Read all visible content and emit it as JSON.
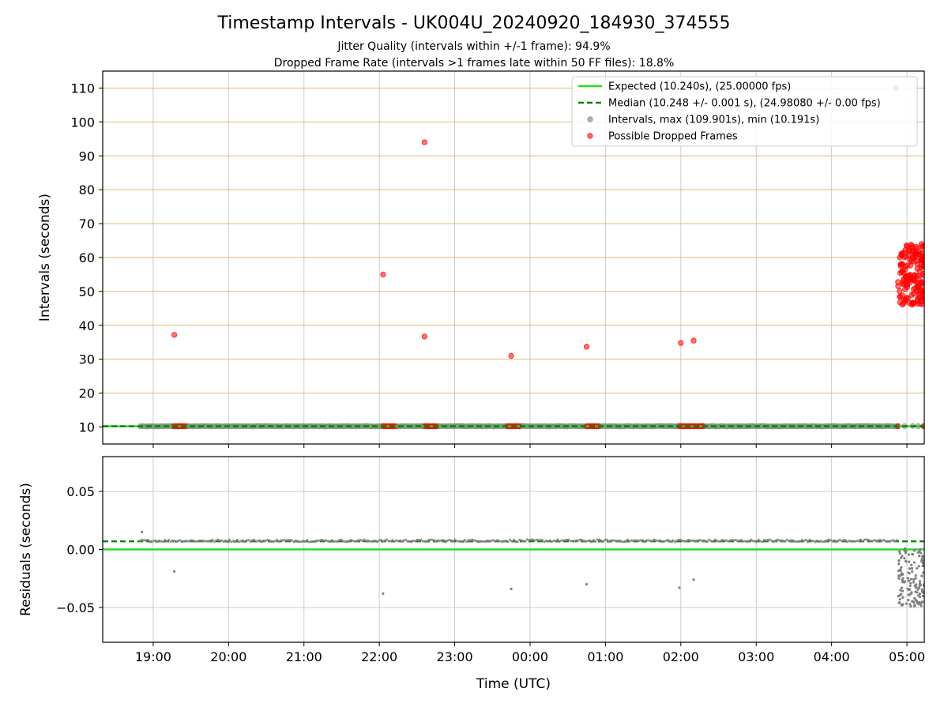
{
  "title": "Timestamp Intervals - UK004U_20240920_184930_374555",
  "subtitle_1": "Jitter Quality (intervals within +/-1 frame): 94.9%",
  "subtitle_2": "Dropped Frame Rate (intervals >1 frames late within 50 FF files): 18.8%",
  "colors": {
    "expected": "#22dd22",
    "median": "#008000",
    "intervals": "#808080",
    "dropped": "#ff0000",
    "grid_top": "#ddbb77",
    "grid": "#cccccc"
  },
  "chart_data": [
    {
      "type": "scatter",
      "ylabel": "Intervals (seconds)",
      "xlim": [
        18.33,
        29.23
      ],
      "ylim": [
        5,
        115
      ],
      "yticks": [
        10,
        20,
        30,
        40,
        50,
        60,
        70,
        80,
        90,
        100,
        110
      ],
      "grid": true,
      "legend_position": "top-right",
      "legend": [
        "Expected (10.240s), (25.00000 fps)",
        "Median (10.248 +/- 0.001 s), (24.98080 +/- 0.00 fps)",
        "Intervals, max (109.901s), min (10.191s)",
        "Possible Dropped Frames"
      ],
      "expected": 10.24,
      "median": 10.248,
      "dense_intervals": {
        "x_range": [
          18.83,
          28.88
        ],
        "value": 10.248
      },
      "sparse_intervals_x_range": [
        28.88,
        29.23
      ],
      "dropped_clusters": [
        {
          "x_range": [
            19.27,
            19.45
          ],
          "value": 10.25
        },
        {
          "x_range": [
            22.05,
            22.22
          ],
          "value": 10.25
        },
        {
          "x_range": [
            22.6,
            22.78
          ],
          "value": 10.25
        },
        {
          "x_range": [
            23.7,
            23.87
          ],
          "value": 10.25
        },
        {
          "x_range": [
            24.75,
            24.92
          ],
          "value": 10.25
        },
        {
          "x_range": [
            25.98,
            26.32
          ],
          "value": 10.25
        }
      ],
      "dropped_outliers": [
        [
          19.28,
          37.2
        ],
        [
          22.05,
          55.0
        ],
        [
          22.6,
          94.0
        ],
        [
          22.6,
          36.7
        ],
        [
          23.75,
          31.0
        ],
        [
          24.75,
          33.7
        ],
        [
          26.0,
          34.8
        ],
        [
          26.17,
          35.5
        ],
        [
          28.85,
          110.0
        ]
      ],
      "late_cluster": {
        "x_range": [
          28.88,
          29.23
        ],
        "y_range": [
          46,
          64
        ]
      }
    },
    {
      "type": "scatter",
      "ylabel": "Residuals (seconds)",
      "xlabel": "Time (UTC)",
      "xlim": [
        18.33,
        29.23
      ],
      "ylim": [
        -0.08,
        0.08
      ],
      "yticks": [
        0.05,
        0.0,
        -0.05
      ],
      "ytick_labels": [
        "0.05",
        "0.00",
        "−0.05"
      ],
      "xticks": [
        19,
        20,
        21,
        22,
        23,
        24,
        25,
        26,
        27,
        28,
        29
      ],
      "xtick_labels": [
        "19:00",
        "20:00",
        "21:00",
        "22:00",
        "23:00",
        "00:00",
        "01:00",
        "02:00",
        "03:00",
        "04:00",
        "05:00"
      ],
      "grid": true,
      "expected_residual": 0.0,
      "median_residual": 0.007,
      "dense_residuals": {
        "x_range": [
          18.83,
          28.88
        ],
        "value": 0.0075
      },
      "outlier_residuals": [
        [
          18.85,
          0.015
        ],
        [
          19.28,
          -0.019
        ],
        [
          22.05,
          -0.038
        ],
        [
          23.75,
          -0.034
        ],
        [
          24.75,
          -0.03
        ],
        [
          25.98,
          -0.033
        ],
        [
          26.17,
          -0.026
        ]
      ],
      "late_residuals": {
        "x_range": [
          28.88,
          29.23
        ],
        "y_range": [
          -0.049,
          0.001
        ]
      }
    }
  ]
}
